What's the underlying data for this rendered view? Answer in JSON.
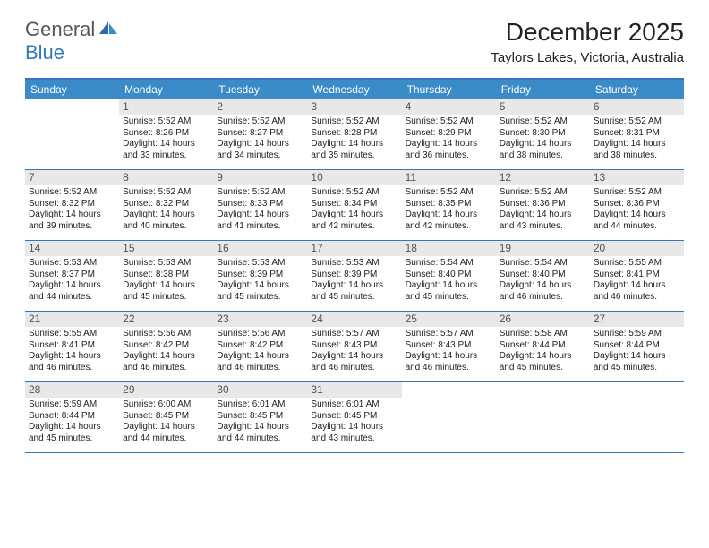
{
  "logo": {
    "general": "General",
    "blue": "Blue"
  },
  "header": {
    "month_title": "December 2025",
    "location": "Taylors Lakes, Victoria, Australia"
  },
  "colors": {
    "header_bar": "#3b8bc9",
    "border": "#3277bc",
    "daynum_bg": "#e8e8e8",
    "text": "#222222",
    "logo_gray": "#555555",
    "logo_blue": "#3277bc"
  },
  "weekdays": [
    "Sunday",
    "Monday",
    "Tuesday",
    "Wednesday",
    "Thursday",
    "Friday",
    "Saturday"
  ],
  "weeks": [
    [
      null,
      {
        "n": "1",
        "sr": "Sunrise: 5:52 AM",
        "ss": "Sunset: 8:26 PM",
        "d1": "Daylight: 14 hours",
        "d2": "and 33 minutes."
      },
      {
        "n": "2",
        "sr": "Sunrise: 5:52 AM",
        "ss": "Sunset: 8:27 PM",
        "d1": "Daylight: 14 hours",
        "d2": "and 34 minutes."
      },
      {
        "n": "3",
        "sr": "Sunrise: 5:52 AM",
        "ss": "Sunset: 8:28 PM",
        "d1": "Daylight: 14 hours",
        "d2": "and 35 minutes."
      },
      {
        "n": "4",
        "sr": "Sunrise: 5:52 AM",
        "ss": "Sunset: 8:29 PM",
        "d1": "Daylight: 14 hours",
        "d2": "and 36 minutes."
      },
      {
        "n": "5",
        "sr": "Sunrise: 5:52 AM",
        "ss": "Sunset: 8:30 PM",
        "d1": "Daylight: 14 hours",
        "d2": "and 38 minutes."
      },
      {
        "n": "6",
        "sr": "Sunrise: 5:52 AM",
        "ss": "Sunset: 8:31 PM",
        "d1": "Daylight: 14 hours",
        "d2": "and 38 minutes."
      }
    ],
    [
      {
        "n": "7",
        "sr": "Sunrise: 5:52 AM",
        "ss": "Sunset: 8:32 PM",
        "d1": "Daylight: 14 hours",
        "d2": "and 39 minutes."
      },
      {
        "n": "8",
        "sr": "Sunrise: 5:52 AM",
        "ss": "Sunset: 8:32 PM",
        "d1": "Daylight: 14 hours",
        "d2": "and 40 minutes."
      },
      {
        "n": "9",
        "sr": "Sunrise: 5:52 AM",
        "ss": "Sunset: 8:33 PM",
        "d1": "Daylight: 14 hours",
        "d2": "and 41 minutes."
      },
      {
        "n": "10",
        "sr": "Sunrise: 5:52 AM",
        "ss": "Sunset: 8:34 PM",
        "d1": "Daylight: 14 hours",
        "d2": "and 42 minutes."
      },
      {
        "n": "11",
        "sr": "Sunrise: 5:52 AM",
        "ss": "Sunset: 8:35 PM",
        "d1": "Daylight: 14 hours",
        "d2": "and 42 minutes."
      },
      {
        "n": "12",
        "sr": "Sunrise: 5:52 AM",
        "ss": "Sunset: 8:36 PM",
        "d1": "Daylight: 14 hours",
        "d2": "and 43 minutes."
      },
      {
        "n": "13",
        "sr": "Sunrise: 5:52 AM",
        "ss": "Sunset: 8:36 PM",
        "d1": "Daylight: 14 hours",
        "d2": "and 44 minutes."
      }
    ],
    [
      {
        "n": "14",
        "sr": "Sunrise: 5:53 AM",
        "ss": "Sunset: 8:37 PM",
        "d1": "Daylight: 14 hours",
        "d2": "and 44 minutes."
      },
      {
        "n": "15",
        "sr": "Sunrise: 5:53 AM",
        "ss": "Sunset: 8:38 PM",
        "d1": "Daylight: 14 hours",
        "d2": "and 45 minutes."
      },
      {
        "n": "16",
        "sr": "Sunrise: 5:53 AM",
        "ss": "Sunset: 8:39 PM",
        "d1": "Daylight: 14 hours",
        "d2": "and 45 minutes."
      },
      {
        "n": "17",
        "sr": "Sunrise: 5:53 AM",
        "ss": "Sunset: 8:39 PM",
        "d1": "Daylight: 14 hours",
        "d2": "and 45 minutes."
      },
      {
        "n": "18",
        "sr": "Sunrise: 5:54 AM",
        "ss": "Sunset: 8:40 PM",
        "d1": "Daylight: 14 hours",
        "d2": "and 45 minutes."
      },
      {
        "n": "19",
        "sr": "Sunrise: 5:54 AM",
        "ss": "Sunset: 8:40 PM",
        "d1": "Daylight: 14 hours",
        "d2": "and 46 minutes."
      },
      {
        "n": "20",
        "sr": "Sunrise: 5:55 AM",
        "ss": "Sunset: 8:41 PM",
        "d1": "Daylight: 14 hours",
        "d2": "and 46 minutes."
      }
    ],
    [
      {
        "n": "21",
        "sr": "Sunrise: 5:55 AM",
        "ss": "Sunset: 8:41 PM",
        "d1": "Daylight: 14 hours",
        "d2": "and 46 minutes."
      },
      {
        "n": "22",
        "sr": "Sunrise: 5:56 AM",
        "ss": "Sunset: 8:42 PM",
        "d1": "Daylight: 14 hours",
        "d2": "and 46 minutes."
      },
      {
        "n": "23",
        "sr": "Sunrise: 5:56 AM",
        "ss": "Sunset: 8:42 PM",
        "d1": "Daylight: 14 hours",
        "d2": "and 46 minutes."
      },
      {
        "n": "24",
        "sr": "Sunrise: 5:57 AM",
        "ss": "Sunset: 8:43 PM",
        "d1": "Daylight: 14 hours",
        "d2": "and 46 minutes."
      },
      {
        "n": "25",
        "sr": "Sunrise: 5:57 AM",
        "ss": "Sunset: 8:43 PM",
        "d1": "Daylight: 14 hours",
        "d2": "and 46 minutes."
      },
      {
        "n": "26",
        "sr": "Sunrise: 5:58 AM",
        "ss": "Sunset: 8:44 PM",
        "d1": "Daylight: 14 hours",
        "d2": "and 45 minutes."
      },
      {
        "n": "27",
        "sr": "Sunrise: 5:59 AM",
        "ss": "Sunset: 8:44 PM",
        "d1": "Daylight: 14 hours",
        "d2": "and 45 minutes."
      }
    ],
    [
      {
        "n": "28",
        "sr": "Sunrise: 5:59 AM",
        "ss": "Sunset: 8:44 PM",
        "d1": "Daylight: 14 hours",
        "d2": "and 45 minutes."
      },
      {
        "n": "29",
        "sr": "Sunrise: 6:00 AM",
        "ss": "Sunset: 8:45 PM",
        "d1": "Daylight: 14 hours",
        "d2": "and 44 minutes."
      },
      {
        "n": "30",
        "sr": "Sunrise: 6:01 AM",
        "ss": "Sunset: 8:45 PM",
        "d1": "Daylight: 14 hours",
        "d2": "and 44 minutes."
      },
      {
        "n": "31",
        "sr": "Sunrise: 6:01 AM",
        "ss": "Sunset: 8:45 PM",
        "d1": "Daylight: 14 hours",
        "d2": "and 43 minutes."
      },
      null,
      null,
      null
    ]
  ]
}
